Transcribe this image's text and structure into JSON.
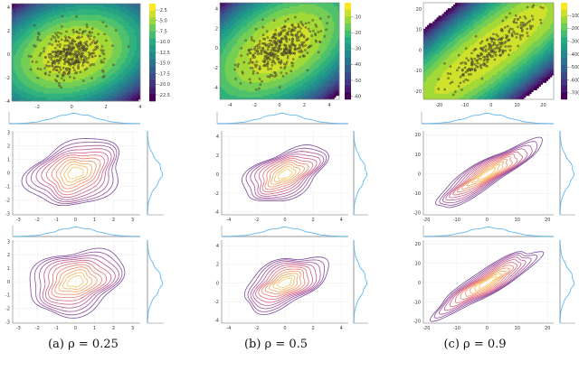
{
  "captions": [
    "(a) ρ = 0.25",
    "(b) ρ = 0.5",
    "(c) ρ = 0.9"
  ],
  "chart_data": [
    {
      "type": "contour-with-scatter-and-kde",
      "rho": 0.25,
      "top": {
        "xticks": [
          "-2",
          "0",
          "2",
          "4"
        ],
        "xlim": [
          -3.5,
          4
        ],
        "yticks": [
          "-4",
          "-2",
          "0",
          "2",
          "4"
        ],
        "ylim": [
          -4,
          4.3
        ],
        "colorbar_ticks": [
          "-2.5",
          "-5.0",
          "-7.5",
          "-10.0",
          "-12.5",
          "-15.0",
          "-17.5",
          "-20.0",
          "-22.5"
        ],
        "colorbar_range": [
          -24,
          -1
        ],
        "colormap": "viridis"
      },
      "kde": {
        "xticks": [
          "-3",
          "-2",
          "-1",
          "0",
          "1",
          "2",
          "3"
        ],
        "xlim": [
          -3.3,
          3.4
        ],
        "yticks": [
          "-3",
          "-2",
          "-1",
          "0",
          "1",
          "2",
          "3"
        ],
        "ylim": [
          -3.1,
          3.1
        ],
        "colormap": "magma",
        "line_color": "#5fb8f5"
      }
    },
    {
      "type": "contour-with-scatter-and-kde",
      "rho": 0.5,
      "top": {
        "xticks": [
          "-4",
          "-2",
          "0",
          "2",
          "4"
        ],
        "xlim": [
          -4.8,
          4.8
        ],
        "yticks": [
          "-4",
          "-2",
          "0",
          "2",
          "4"
        ],
        "ylim": [
          -5.2,
          4.6
        ],
        "colorbar_ticks": [
          "-10",
          "-20",
          "-30",
          "-40",
          "-50",
          "-60"
        ],
        "colorbar_range": [
          -62,
          -1
        ],
        "colormap": "viridis"
      },
      "kde": {
        "xticks": [
          "-4",
          "-2",
          "0",
          "2",
          "4"
        ],
        "xlim": [
          -4.5,
          4.5
        ],
        "yticks": [
          "-4",
          "-2",
          "0",
          "2",
          "4"
        ],
        "ylim": [
          -4.3,
          4.6
        ],
        "colormap": "magma",
        "line_color": "#5fb8f5"
      }
    },
    {
      "type": "contour-with-scatter-and-kde",
      "rho": 0.9,
      "top": {
        "xticks": [
          "-20",
          "-10",
          "0",
          "10",
          "20"
        ],
        "xlim": [
          -26,
          24
        ],
        "yticks": [
          "-20",
          "-10",
          "0",
          "10",
          "20"
        ],
        "ylim": [
          -24,
          23
        ],
        "colorbar_ticks": [
          "-100",
          "-200",
          "-300",
          "-400",
          "-500",
          "-600",
          "-700"
        ],
        "colorbar_range": [
          -750,
          -1
        ],
        "colormap": "viridis"
      },
      "kde": {
        "xticks": [
          "-20",
          "-10",
          "0",
          "10",
          "20"
        ],
        "xlim": [
          -21,
          22
        ],
        "yticks": [
          "-20",
          "-10",
          "0",
          "10",
          "20"
        ],
        "ylim": [
          -21,
          22
        ],
        "colormap": "magma",
        "line_color": "#5fb8f5"
      }
    }
  ]
}
